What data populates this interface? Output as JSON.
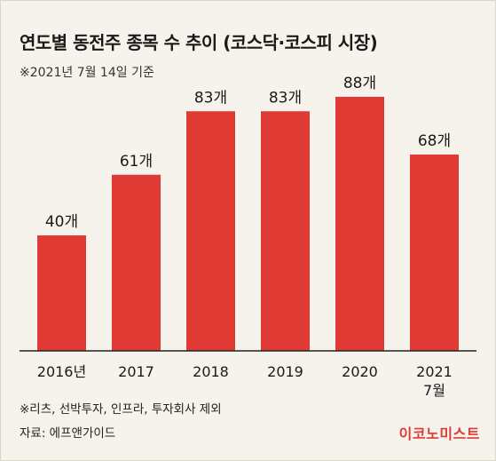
{
  "header": {
    "title": "연도별 동전주 종목 수 추이 (코스닥·코스피 시장)",
    "subtitle": "※2021년 7월 14일 기준"
  },
  "footer": {
    "note": "※리츠, 선박투자, 인프라, 투자회사 제외",
    "source": "자료: 에프앤가이드",
    "brand": "이코노미스트"
  },
  "colors": {
    "bar": "#e03a34",
    "background": "#f5f3ec",
    "axis": "#222222",
    "brand": "#e03a34"
  },
  "chart_data": {
    "type": "bar",
    "categories": [
      "2016년",
      "2017",
      "2018",
      "2019",
      "2020",
      "2021\n7월"
    ],
    "values": [
      40,
      61,
      83,
      83,
      88,
      68
    ],
    "value_labels": [
      "40개",
      "61개",
      "83개",
      "83개",
      "88개",
      "68개"
    ],
    "title": "연도별 동전주 종목 수 추이 (코스닥·코스피 시장)",
    "xlabel": "",
    "ylabel": "",
    "ylim": [
      0,
      88
    ],
    "grid": false,
    "legend": "none"
  }
}
